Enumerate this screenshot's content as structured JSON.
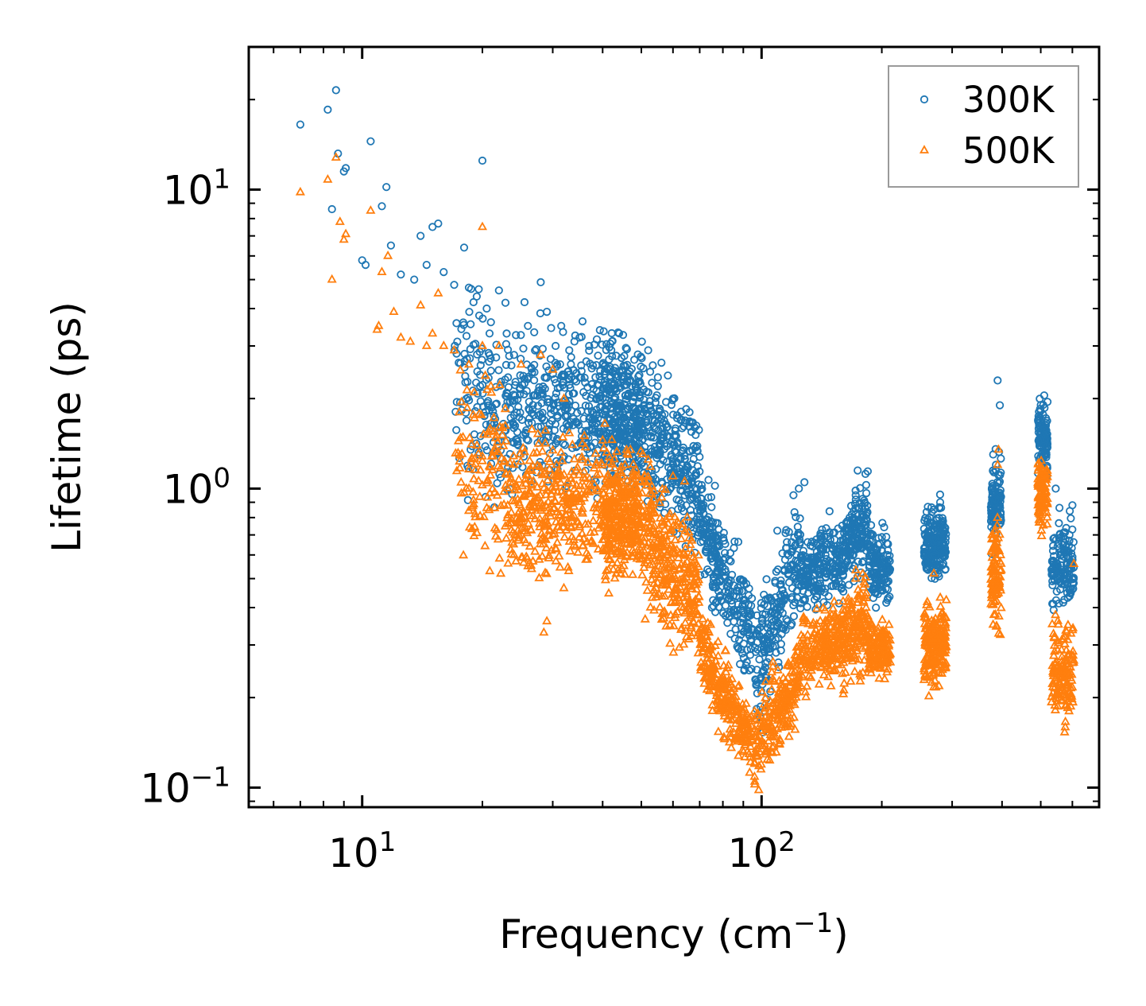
{
  "chart_data": {
    "type": "scatter",
    "title": "",
    "xlabel": "Frequency (cm",
    "xlabel_sup": "−1",
    "xlabel_close": ")",
    "ylabel": "Lifetime (ps)",
    "xscale": "log",
    "yscale": "log",
    "xlim": [
      5.2,
      700
    ],
    "ylim": [
      0.086,
      30
    ],
    "x_ticks": [
      {
        "value": 10,
        "base": "10",
        "exp": "1"
      },
      {
        "value": 100,
        "base": "10",
        "exp": "2"
      }
    ],
    "y_ticks": [
      {
        "value": 0.1,
        "base": "10",
        "exp": "−1"
      },
      {
        "value": 1,
        "base": "10",
        "exp": "0"
      },
      {
        "value": 10,
        "base": "10",
        "exp": "1"
      }
    ],
    "legend": {
      "position": "top-right"
    },
    "series": [
      {
        "name": "300K",
        "marker": "circle",
        "color": "#1f77b4",
        "points": [
          [
            7.0,
            16.5
          ],
          [
            8.2,
            18.5
          ],
          [
            8.6,
            21.5
          ],
          [
            8.7,
            13.2
          ],
          [
            9.1,
            11.8
          ],
          [
            9.0,
            11.5
          ],
          [
            10.5,
            14.5
          ],
          [
            11.5,
            10.2
          ],
          [
            11.2,
            8.8
          ],
          [
            8.4,
            8.6
          ],
          [
            10.0,
            5.8
          ],
          [
            10.2,
            5.6
          ],
          [
            11.8,
            6.5
          ],
          [
            12.5,
            5.2
          ],
          [
            13.5,
            5.0
          ],
          [
            14.0,
            7.0
          ],
          [
            14.5,
            5.6
          ],
          [
            15.0,
            7.5
          ],
          [
            15.5,
            7.7
          ],
          [
            16.0,
            5.3
          ],
          [
            17.0,
            4.8
          ],
          [
            17.3,
            3.1
          ],
          [
            18.0,
            6.4
          ],
          [
            18.5,
            4.7
          ],
          [
            19.0,
            4.2
          ],
          [
            20.0,
            12.5
          ],
          [
            20.5,
            4.0
          ],
          [
            21.0,
            3.6
          ],
          [
            22.0,
            4.6
          ],
          [
            23.0,
            3.3
          ],
          [
            24.0,
            2.8
          ],
          [
            25.5,
            4.2
          ],
          [
            26.0,
            3.5
          ],
          [
            28.0,
            4.9
          ],
          [
            29.0,
            3.9
          ],
          [
            30.5,
            3.0
          ],
          [
            31.5,
            3.5
          ],
          [
            33.0,
            2.9
          ],
          [
            35.0,
            3.2
          ],
          [
            37.0,
            3.0
          ],
          [
            40.0,
            2.6
          ],
          [
            43.0,
            2.4
          ],
          [
            47.0,
            2.3
          ],
          [
            52.0,
            2.9
          ],
          [
            55.0,
            2.2
          ],
          [
            60.0,
            2.0
          ],
          [
            63.0,
            1.7
          ],
          [
            66.0,
            1.8
          ],
          [
            68.0,
            1.6
          ],
          [
            124.0,
            1.0
          ],
          [
            128.0,
            1.05
          ],
          [
            174.0,
            1.15
          ],
          [
            182.0,
            1.12
          ],
          [
            172.0,
            0.95
          ],
          [
            270.0,
            0.85
          ],
          [
            280.0,
            0.9
          ],
          [
            390.0,
            2.3
          ],
          [
            395.0,
            1.9
          ],
          [
            380.0,
            1.3
          ],
          [
            510.0,
            2.05
          ],
          [
            520.0,
            1.95
          ],
          [
            545.0,
            1.0
          ],
          [
            600.0,
            0.88
          ],
          [
            590.0,
            0.7
          ]
        ],
        "bands": [
          {
            "from": 17,
            "to": 23,
            "center": 2.0,
            "spread": 0.28,
            "n": 130,
            "slope": -0.55
          },
          {
            "from": 23,
            "to": 40,
            "center": 1.85,
            "spread": 0.22,
            "n": 360,
            "slope": 0.1
          },
          {
            "from": 40,
            "to": 50,
            "center": 1.75,
            "spread": 0.2,
            "n": 340,
            "slope": -0.2
          },
          {
            "from": 50,
            "to": 70,
            "center": 1.3,
            "spread": 0.22,
            "n": 300,
            "slope": -1.4
          },
          {
            "from": 70,
            "to": 95,
            "center": 0.5,
            "spread": 0.14,
            "n": 260,
            "slope": -3.0
          },
          {
            "from": 96,
            "to": 125,
            "center": 0.38,
            "spread": 0.18,
            "n": 220,
            "slope": 3.8
          },
          {
            "from": 125,
            "to": 160,
            "center": 0.55,
            "spread": 0.11,
            "n": 220,
            "slope": 0.6
          },
          {
            "from": 160,
            "to": 185,
            "center": 0.7,
            "spread": 0.12,
            "n": 160,
            "slope": 2.0
          },
          {
            "from": 185,
            "to": 210,
            "center": 0.55,
            "spread": 0.1,
            "n": 140,
            "slope": -0.8
          },
          {
            "from": 255,
            "to": 290,
            "center": 0.66,
            "spread": 0.1,
            "n": 200,
            "slope": 0.2
          },
          {
            "from": 375,
            "to": 398,
            "center": 0.9,
            "spread": 0.13,
            "n": 110,
            "slope": 0.8
          },
          {
            "from": 492,
            "to": 520,
            "center": 1.45,
            "spread": 0.1,
            "n": 110,
            "slope": -0.3
          },
          {
            "from": 532,
            "to": 605,
            "center": 0.55,
            "spread": 0.12,
            "n": 140,
            "slope": 0.3
          }
        ]
      },
      {
        "name": "500K",
        "marker": "triangle",
        "color": "#ff7f0e",
        "points": [
          [
            7.0,
            9.8
          ],
          [
            8.2,
            10.8
          ],
          [
            8.6,
            12.8
          ],
          [
            8.8,
            7.8
          ],
          [
            9.0,
            6.8
          ],
          [
            9.1,
            7.1
          ],
          [
            8.4,
            5.0
          ],
          [
            10.5,
            8.5
          ],
          [
            11.2,
            5.3
          ],
          [
            11.6,
            6.0
          ],
          [
            12.0,
            3.9
          ],
          [
            10.9,
            3.4
          ],
          [
            11.0,
            3.5
          ],
          [
            12.5,
            3.2
          ],
          [
            13.2,
            3.1
          ],
          [
            14.0,
            4.1
          ],
          [
            14.5,
            3.0
          ],
          [
            15.0,
            3.3
          ],
          [
            15.5,
            4.5
          ],
          [
            16.0,
            3.0
          ],
          [
            17.0,
            2.9
          ],
          [
            17.5,
            1.8
          ],
          [
            18.5,
            2.6
          ],
          [
            20.0,
            7.5
          ],
          [
            20.0,
            3.0
          ],
          [
            21.0,
            2.2
          ],
          [
            22.0,
            3.0
          ],
          [
            25.0,
            2.6
          ],
          [
            28.0,
            2.8
          ],
          [
            30.0,
            2.5
          ],
          [
            28.5,
            0.33
          ],
          [
            29.0,
            0.36
          ],
          [
            32.0,
            2.0
          ],
          [
            26.0,
            0.55
          ],
          [
            24.0,
            0.6
          ],
          [
            36.0,
            1.5
          ],
          [
            40.0,
            1.45
          ],
          [
            52.0,
            1.25
          ],
          [
            60.0,
            1.1
          ],
          [
            96.0,
            0.18
          ],
          [
            100.0,
            0.16
          ],
          [
            118.0,
            0.16
          ],
          [
            122.0,
            0.2
          ],
          [
            172.0,
            0.5
          ],
          [
            270.0,
            0.52
          ],
          [
            392.0,
            1.35
          ],
          [
            390.0,
            1.2
          ],
          [
            510.0,
            1.1
          ],
          [
            605.0,
            0.56
          ]
        ],
        "bands": [
          {
            "from": 17,
            "to": 23,
            "center": 1.2,
            "spread": 0.26,
            "n": 120,
            "slope": -0.6
          },
          {
            "from": 23,
            "to": 40,
            "center": 0.88,
            "spread": 0.19,
            "n": 360,
            "slope": 0.1
          },
          {
            "from": 40,
            "to": 50,
            "center": 0.82,
            "spread": 0.18,
            "n": 340,
            "slope": -0.3
          },
          {
            "from": 50,
            "to": 70,
            "center": 0.55,
            "spread": 0.2,
            "n": 330,
            "slope": -1.5
          },
          {
            "from": 70,
            "to": 95,
            "center": 0.2,
            "spread": 0.12,
            "n": 280,
            "slope": -2.6
          },
          {
            "from": 96,
            "to": 125,
            "center": 0.18,
            "spread": 0.12,
            "n": 220,
            "slope": 2.2
          },
          {
            "from": 125,
            "to": 160,
            "center": 0.3,
            "spread": 0.11,
            "n": 220,
            "slope": 0.4
          },
          {
            "from": 160,
            "to": 185,
            "center": 0.33,
            "spread": 0.14,
            "n": 160,
            "slope": 1.0
          },
          {
            "from": 185,
            "to": 210,
            "center": 0.29,
            "spread": 0.08,
            "n": 140,
            "slope": -0.2
          },
          {
            "from": 255,
            "to": 290,
            "center": 0.3,
            "spread": 0.12,
            "n": 200,
            "slope": 0.3
          },
          {
            "from": 375,
            "to": 398,
            "center": 0.52,
            "spread": 0.16,
            "n": 110,
            "slope": 0.6
          },
          {
            "from": 492,
            "to": 520,
            "center": 0.95,
            "spread": 0.1,
            "n": 100,
            "slope": -0.2
          },
          {
            "from": 532,
            "to": 605,
            "center": 0.25,
            "spread": 0.15,
            "n": 140,
            "slope": 0.4
          }
        ]
      }
    ]
  }
}
